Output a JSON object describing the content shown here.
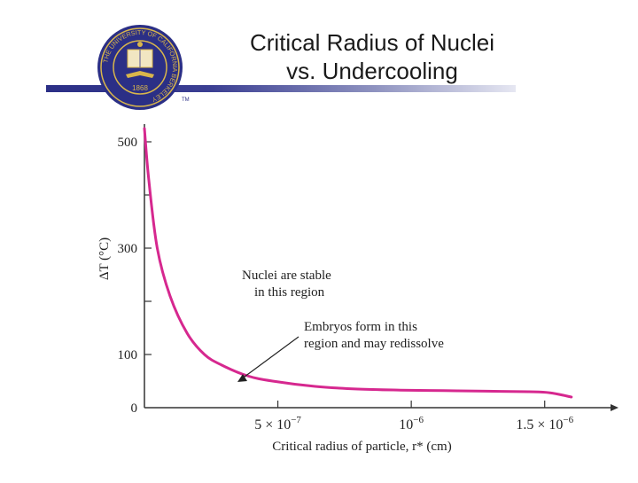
{
  "slide": {
    "title_line1": "Critical Radius of Nuclei",
    "title_line2": "vs. Undercooling",
    "logo": {
      "ring_text": "THE UNIVERSITY OF CALIFORNIA BERKELEY",
      "year": "1868",
      "trademark": "TM",
      "colors": {
        "blue": "#2b2f86",
        "gold": "#d9b64b"
      }
    }
  },
  "colors": {
    "curve": "#d6288f",
    "axis": "#333333",
    "band": "#2b2f86"
  },
  "chart_data": {
    "type": "line",
    "title": "",
    "xlabel": "Critical radius of particle, r* (cm)",
    "ylabel": "ΔT (°C)",
    "xlim": [
      0,
      1.75e-06
    ],
    "ylim": [
      0,
      520
    ],
    "x_ticks": [
      {
        "value": 5e-07,
        "label": "5 × 10^−7"
      },
      {
        "value": 1e-06,
        "label": "10^−6"
      },
      {
        "value": 1.5e-06,
        "label": "1.5 × 10^−6"
      }
    ],
    "y_ticks": [
      {
        "value": 0,
        "label": "0"
      },
      {
        "value": 100,
        "label": "100"
      },
      {
        "value": 300,
        "label": "300"
      },
      {
        "value": 500,
        "label": "500"
      }
    ],
    "series": [
      {
        "x": [
          0.0,
          1.6e-08,
          4.8e-08,
          9.6e-08,
          1.6e-07,
          2.25e-07,
          2.9e-07,
          3.85e-07,
          4.8e-07,
          6.4e-07,
          8e-07,
          9.6e-07,
          1.12e-06,
          1.28e-06,
          1.44e-06,
          1.52e-06,
          1.6e-06
        ],
        "y": [
          525,
          430,
          300,
          210,
          140,
          100,
          80,
          60,
          50,
          40,
          35,
          33,
          32,
          31,
          30,
          28,
          20
        ]
      }
    ],
    "annotations": [
      {
        "text_line1": "Nuclei are stable",
        "text_line2": "in this region"
      },
      {
        "text_line1": "Embryos form in this",
        "text_line2": "region and may redissolve"
      }
    ],
    "grid": false
  }
}
